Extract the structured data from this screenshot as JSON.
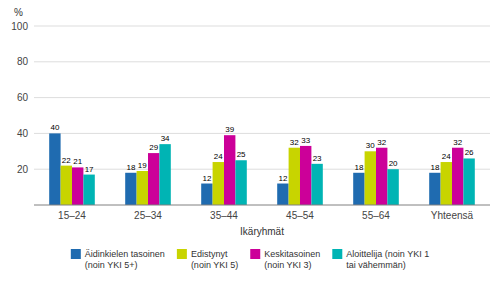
{
  "chart_data": {
    "type": "bar",
    "categories": [
      "15–24",
      "25–34",
      "35–44",
      "45–54",
      "55–64",
      "Yhteensä"
    ],
    "series": [
      {
        "name": "Äidinkielen tasoinen\n(noin YKI 5+)",
        "values": [
          40,
          18,
          12,
          12,
          18,
          18
        ],
        "color": "#1F6BB0"
      },
      {
        "name": "Edistynyt\n(noin YKI 5)",
        "values": [
          22,
          19,
          24,
          32,
          30,
          24
        ],
        "color": "#C8D400"
      },
      {
        "name": "Keskitasoinen\n(noin YKI 3)",
        "values": [
          21,
          29,
          39,
          33,
          32,
          32
        ],
        "color": "#CC0099"
      },
      {
        "name": "Aloittelija (noin YKI 1\ntai vähemmän)",
        "values": [
          17,
          34,
          25,
          23,
          20,
          26
        ],
        "color": "#00B4B4"
      }
    ],
    "xlabel": "Ikäryhmät",
    "ylabel": "%",
    "ylim": [
      0,
      100
    ],
    "yticks": [
      20,
      40,
      60,
      80,
      100
    ],
    "grid": true,
    "data_labels": true,
    "legend": "bottom"
  }
}
